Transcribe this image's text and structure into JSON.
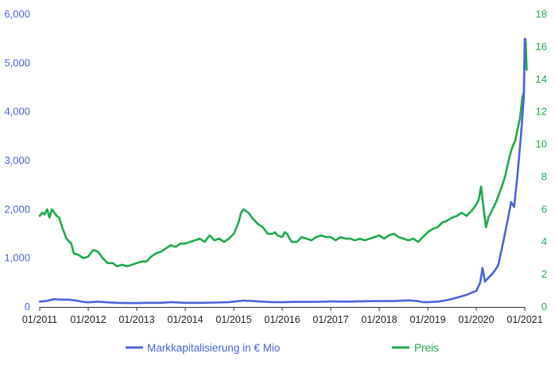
{
  "chart_data": {
    "type": "line",
    "title": "",
    "xlabel": "",
    "x_ticks": [
      "01/2011",
      "01/2012",
      "01/2013",
      "01/2014",
      "01/2015",
      "01/2016",
      "01/2017",
      "01/2018",
      "01/2019",
      "01/2020",
      "01/2021"
    ],
    "y_left": {
      "ticks": [
        "0",
        "1,000",
        "2,000",
        "3,000",
        "4,000",
        "5,000",
        "6,000"
      ],
      "range": [
        0,
        6000
      ],
      "color": "#4a63dd"
    },
    "y_right": {
      "ticks": [
        "0",
        "2",
        "4",
        "6",
        "8",
        "10",
        "12",
        "14",
        "16",
        "18"
      ],
      "range": [
        0,
        18
      ],
      "color": "#1eaa4b"
    },
    "grid": false,
    "legend_position": "bottom",
    "series": [
      {
        "name": "Markkapitalisierung in € Mio",
        "axis": "left",
        "color": "#4a63dd",
        "points": [
          [
            2011.0,
            110
          ],
          [
            2011.15,
            125
          ],
          [
            2011.3,
            160
          ],
          [
            2011.45,
            150
          ],
          [
            2011.6,
            150
          ],
          [
            2011.75,
            130
          ],
          [
            2011.9,
            105
          ],
          [
            2012.0,
            95
          ],
          [
            2012.2,
            110
          ],
          [
            2012.4,
            95
          ],
          [
            2012.6,
            85
          ],
          [
            2012.8,
            80
          ],
          [
            2013.0,
            80
          ],
          [
            2013.2,
            85
          ],
          [
            2013.5,
            85
          ],
          [
            2013.7,
            100
          ],
          [
            2013.9,
            90
          ],
          [
            2014.0,
            85
          ],
          [
            2014.3,
            85
          ],
          [
            2014.6,
            90
          ],
          [
            2014.9,
            100
          ],
          [
            2015.0,
            110
          ],
          [
            2015.2,
            130
          ],
          [
            2015.4,
            120
          ],
          [
            2015.6,
            110
          ],
          [
            2015.8,
            100
          ],
          [
            2016.0,
            100
          ],
          [
            2016.3,
            105
          ],
          [
            2016.6,
            105
          ],
          [
            2016.9,
            110
          ],
          [
            2017.0,
            115
          ],
          [
            2017.3,
            110
          ],
          [
            2017.6,
            115
          ],
          [
            2017.9,
            120
          ],
          [
            2018.0,
            120
          ],
          [
            2018.3,
            120
          ],
          [
            2018.6,
            135
          ],
          [
            2018.8,
            120
          ],
          [
            2018.9,
            100
          ],
          [
            2019.0,
            100
          ],
          [
            2019.2,
            110
          ],
          [
            2019.4,
            140
          ],
          [
            2019.6,
            190
          ],
          [
            2019.8,
            250
          ],
          [
            2019.9,
            290
          ],
          [
            2020.0,
            330
          ],
          [
            2020.08,
            500
          ],
          [
            2020.13,
            800
          ],
          [
            2020.18,
            520
          ],
          [
            2020.25,
            600
          ],
          [
            2020.35,
            700
          ],
          [
            2020.45,
            850
          ],
          [
            2020.55,
            1300
          ],
          [
            2020.65,
            1800
          ],
          [
            2020.72,
            2150
          ],
          [
            2020.78,
            2050
          ],
          [
            2020.85,
            2700
          ],
          [
            2020.92,
            3500
          ],
          [
            2020.98,
            4300
          ],
          [
            2021.0,
            5500
          ],
          [
            2021.02,
            5480
          ]
        ]
      },
      {
        "name": "Preis",
        "axis": "right",
        "color": "#1eaa4b",
        "points": [
          [
            2011.0,
            5.6
          ],
          [
            2011.05,
            5.8
          ],
          [
            2011.1,
            5.7
          ],
          [
            2011.15,
            6.0
          ],
          [
            2011.2,
            5.5
          ],
          [
            2011.25,
            6.0
          ],
          [
            2011.3,
            5.8
          ],
          [
            2011.35,
            5.6
          ],
          [
            2011.4,
            5.5
          ],
          [
            2011.45,
            5.0
          ],
          [
            2011.55,
            4.2
          ],
          [
            2011.65,
            3.9
          ],
          [
            2011.7,
            3.3
          ],
          [
            2011.8,
            3.2
          ],
          [
            2011.9,
            3.0
          ],
          [
            2012.0,
            3.1
          ],
          [
            2012.1,
            3.5
          ],
          [
            2012.2,
            3.4
          ],
          [
            2012.3,
            3.0
          ],
          [
            2012.4,
            2.7
          ],
          [
            2012.5,
            2.7
          ],
          [
            2012.6,
            2.5
          ],
          [
            2012.7,
            2.6
          ],
          [
            2012.8,
            2.5
          ],
          [
            2012.9,
            2.6
          ],
          [
            2013.0,
            2.7
          ],
          [
            2013.1,
            2.8
          ],
          [
            2013.2,
            2.8
          ],
          [
            2013.3,
            3.1
          ],
          [
            2013.4,
            3.3
          ],
          [
            2013.5,
            3.4
          ],
          [
            2013.6,
            3.6
          ],
          [
            2013.7,
            3.8
          ],
          [
            2013.8,
            3.7
          ],
          [
            2013.9,
            3.9
          ],
          [
            2014.0,
            3.9
          ],
          [
            2014.1,
            4.0
          ],
          [
            2014.2,
            4.1
          ],
          [
            2014.3,
            4.2
          ],
          [
            2014.4,
            4.0
          ],
          [
            2014.5,
            4.4
          ],
          [
            2014.6,
            4.1
          ],
          [
            2014.7,
            4.2
          ],
          [
            2014.8,
            4.0
          ],
          [
            2014.9,
            4.2
          ],
          [
            2015.0,
            4.5
          ],
          [
            2015.1,
            5.2
          ],
          [
            2015.15,
            5.8
          ],
          [
            2015.2,
            6.0
          ],
          [
            2015.3,
            5.8
          ],
          [
            2015.4,
            5.4
          ],
          [
            2015.5,
            5.1
          ],
          [
            2015.6,
            4.9
          ],
          [
            2015.7,
            4.5
          ],
          [
            2015.8,
            4.5
          ],
          [
            2015.85,
            4.6
          ],
          [
            2015.9,
            4.4
          ],
          [
            2016.0,
            4.3
          ],
          [
            2016.05,
            4.6
          ],
          [
            2016.1,
            4.5
          ],
          [
            2016.15,
            4.2
          ],
          [
            2016.2,
            4.0
          ],
          [
            2016.3,
            4.0
          ],
          [
            2016.4,
            4.3
          ],
          [
            2016.5,
            4.2
          ],
          [
            2016.6,
            4.1
          ],
          [
            2016.7,
            4.3
          ],
          [
            2016.8,
            4.4
          ],
          [
            2016.9,
            4.3
          ],
          [
            2017.0,
            4.3
          ],
          [
            2017.1,
            4.1
          ],
          [
            2017.2,
            4.3
          ],
          [
            2017.3,
            4.2
          ],
          [
            2017.4,
            4.2
          ],
          [
            2017.5,
            4.1
          ],
          [
            2017.6,
            4.2
          ],
          [
            2017.7,
            4.1
          ],
          [
            2017.8,
            4.2
          ],
          [
            2017.9,
            4.3
          ],
          [
            2018.0,
            4.4
          ],
          [
            2018.1,
            4.2
          ],
          [
            2018.2,
            4.4
          ],
          [
            2018.3,
            4.5
          ],
          [
            2018.4,
            4.3
          ],
          [
            2018.5,
            4.2
          ],
          [
            2018.6,
            4.1
          ],
          [
            2018.7,
            4.2
          ],
          [
            2018.8,
            4.0
          ],
          [
            2018.9,
            4.3
          ],
          [
            2019.0,
            4.6
          ],
          [
            2019.1,
            4.8
          ],
          [
            2019.2,
            4.9
          ],
          [
            2019.3,
            5.2
          ],
          [
            2019.4,
            5.3
          ],
          [
            2019.5,
            5.5
          ],
          [
            2019.6,
            5.6
          ],
          [
            2019.7,
            5.8
          ],
          [
            2019.8,
            5.6
          ],
          [
            2019.9,
            5.9
          ],
          [
            2020.0,
            6.3
          ],
          [
            2020.05,
            6.6
          ],
          [
            2020.1,
            7.4
          ],
          [
            2020.13,
            6.6
          ],
          [
            2020.16,
            5.8
          ],
          [
            2020.2,
            4.9
          ],
          [
            2020.25,
            5.5
          ],
          [
            2020.3,
            5.8
          ],
          [
            2020.35,
            6.1
          ],
          [
            2020.4,
            6.4
          ],
          [
            2020.45,
            6.8
          ],
          [
            2020.5,
            7.2
          ],
          [
            2020.55,
            7.6
          ],
          [
            2020.6,
            8.1
          ],
          [
            2020.65,
            8.8
          ],
          [
            2020.7,
            9.4
          ],
          [
            2020.75,
            9.9
          ],
          [
            2020.8,
            10.2
          ],
          [
            2020.85,
            10.9
          ],
          [
            2020.9,
            11.6
          ],
          [
            2020.95,
            12.9
          ],
          [
            2020.98,
            13.2
          ],
          [
            2021.0,
            15.6
          ],
          [
            2021.02,
            16.3
          ],
          [
            2021.04,
            14.6
          ]
        ]
      }
    ]
  }
}
